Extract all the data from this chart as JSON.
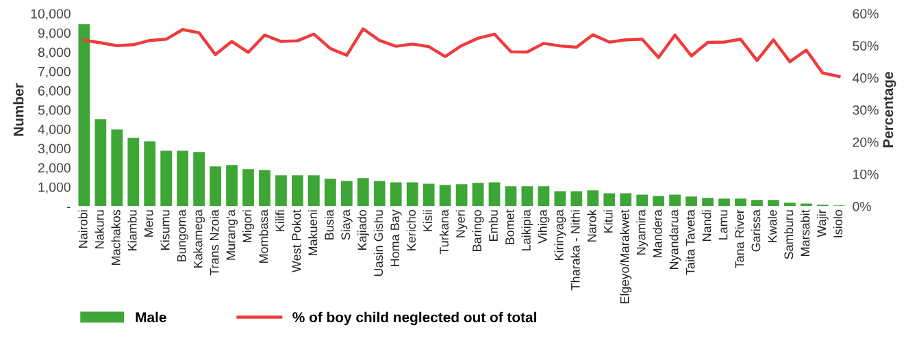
{
  "chart_data": {
    "type": "bar",
    "categories": [
      "Nairobi",
      "Nakuru",
      "Machakos",
      "Kiambu",
      "Meru",
      "Kisumu",
      "Bungoma",
      "Kakamega",
      "Trans Nzoia",
      "Murang'a",
      "Migori",
      "Mombasa",
      "Kilifi",
      "West Pokot",
      "Makueni",
      "Busia",
      "Siaya",
      "Kajiado",
      "Uasin Gishu",
      "Homa Bay",
      "Kericho",
      "Kisii",
      "Turkana",
      "Nyeri",
      "Baringo",
      "Embu",
      "Bomet",
      "Laikipia",
      "Vihiga",
      "Kirinyaga",
      "Tharaka - Nithi",
      "Narok",
      "Kitui",
      "Elgeyo/Marakwet",
      "Nyamira",
      "Mandera",
      "Nyandarua",
      "Taita Taveta",
      "Nandi",
      "Lamu",
      "Tana River",
      "Garissa",
      "Kwale",
      "Samburu",
      "Marsabit",
      "Wajir",
      "Isiolo"
    ],
    "series": [
      {
        "name": "Male",
        "color": "#3ea636",
        "values": [
          9450,
          4510,
          3980,
          3550,
          3370,
          2880,
          2880,
          2810,
          2060,
          2130,
          1920,
          1880,
          1600,
          1600,
          1600,
          1420,
          1310,
          1460,
          1310,
          1240,
          1240,
          1170,
          1100,
          1140,
          1210,
          1240,
          1030,
          1030,
          1030,
          780,
          780,
          820,
          670,
          670,
          600,
          530,
          600,
          500,
          430,
          390,
          390,
          320,
          320,
          180,
          140,
          70,
          40
        ]
      },
      {
        "name": "% of boy child neglected out of total",
        "type": "line",
        "axis": "y2",
        "color": "#ef3b3b",
        "values": [
          51.7,
          50.9,
          50.0,
          50.3,
          51.6,
          52.0,
          55.0,
          54.0,
          47.2,
          51.3,
          47.9,
          53.3,
          51.3,
          51.5,
          53.6,
          49.1,
          47.0,
          55.2,
          51.6,
          49.8,
          50.5,
          49.7,
          46.6,
          50.0,
          52.3,
          53.6,
          48.1,
          48.0,
          50.7,
          49.9,
          49.5,
          53.4,
          51.1,
          51.8,
          52.0,
          46.3,
          53.3,
          46.8,
          51.0,
          51.1,
          52.0,
          45.4,
          51.8,
          45.0,
          48.6,
          41.5,
          40.4
        ]
      }
    ],
    "ylabel": "Number",
    "y2label": "Percentage",
    "ylim": [
      0,
      10000
    ],
    "yticks": [
      {
        "value": 0,
        "label": "-"
      },
      {
        "value": 1000,
        "label": "1,000"
      },
      {
        "value": 2000,
        "label": "2,000"
      },
      {
        "value": 3000,
        "label": "3,000"
      },
      {
        "value": 4000,
        "label": "4,000"
      },
      {
        "value": 5000,
        "label": "5,000"
      },
      {
        "value": 6000,
        "label": "6,000"
      },
      {
        "value": 7000,
        "label": "7,000"
      },
      {
        "value": 8000,
        "label": "8,000"
      },
      {
        "value": 9000,
        "label": "9,000"
      },
      {
        "value": 10000,
        "label": "10,000"
      }
    ],
    "y2lim": [
      0,
      60
    ],
    "y2ticks": [
      {
        "value": 0,
        "label": "0%"
      },
      {
        "value": 10,
        "label": "10%"
      },
      {
        "value": 20,
        "label": "20%"
      },
      {
        "value": 30,
        "label": "30%"
      },
      {
        "value": 40,
        "label": "40%"
      },
      {
        "value": 50,
        "label": "50%"
      },
      {
        "value": 60,
        "label": "60%"
      }
    ],
    "grid": false,
    "legend": "bottom left",
    "line_style": "solid",
    "marker": "none"
  }
}
